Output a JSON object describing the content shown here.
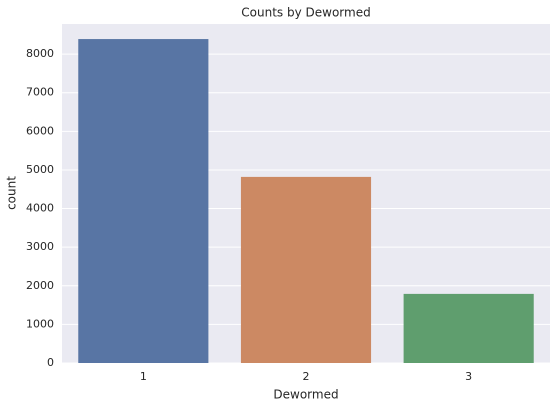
{
  "chart_data": {
    "type": "bar",
    "title": "Counts by Dewormed",
    "x_label": "Dewormed",
    "y_label": "count",
    "categories": [
      "1",
      "2",
      "3"
    ],
    "values": [
      8390,
      4820,
      1790
    ],
    "colors": [
      "#5875a4",
      "#cc8963",
      "#5f9e6e"
    ],
    "ylim": [
      0,
      8780
    ],
    "yticks": [
      0,
      1000,
      2000,
      3000,
      4000,
      5000,
      6000,
      7000,
      8000
    ],
    "grid": true
  }
}
